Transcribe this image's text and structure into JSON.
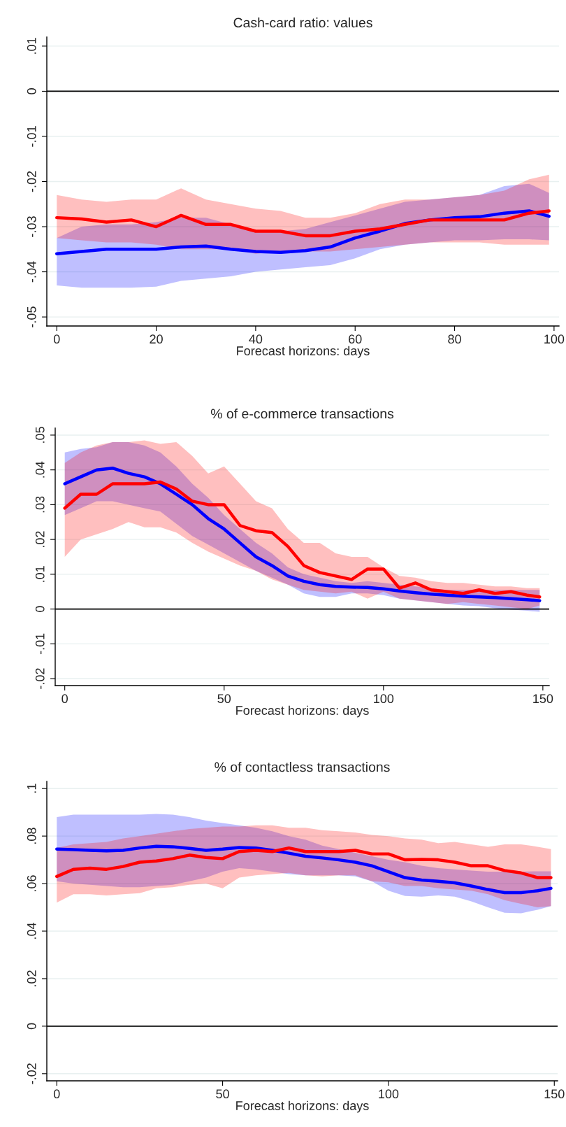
{
  "chart_data": [
    {
      "type": "line",
      "title": "Cash-card ratio: values",
      "xlabel": "Forecast horizons: days",
      "x": [
        0,
        5,
        10,
        15,
        20,
        25,
        30,
        35,
        40,
        45,
        50,
        55,
        60,
        65,
        70,
        75,
        80,
        85,
        90,
        95,
        99
      ],
      "series": [
        {
          "color": "#0000ff",
          "values": [
            -0.036,
            -0.0355,
            -0.035,
            -0.035,
            -0.035,
            -0.0345,
            -0.0343,
            -0.035,
            -0.0355,
            -0.0357,
            -0.0353,
            -0.0345,
            -0.0325,
            -0.031,
            -0.0293,
            -0.0285,
            -0.028,
            -0.0278,
            -0.027,
            -0.0265,
            -0.0277
          ],
          "lower": [
            -0.043,
            -0.0435,
            -0.0435,
            -0.0435,
            -0.0433,
            -0.042,
            -0.0415,
            -0.041,
            -0.04,
            -0.0395,
            -0.039,
            -0.0385,
            -0.037,
            -0.035,
            -0.034,
            -0.0335,
            -0.033,
            -0.033,
            -0.0328,
            -0.0328,
            -0.033
          ],
          "upper": [
            -0.0325,
            -0.03,
            -0.0295,
            -0.0295,
            -0.029,
            -0.028,
            -0.028,
            -0.0295,
            -0.031,
            -0.031,
            -0.0305,
            -0.029,
            -0.0275,
            -0.026,
            -0.0245,
            -0.024,
            -0.0235,
            -0.023,
            -0.021,
            -0.0205,
            -0.0225
          ]
        },
        {
          "color": "#ff0000",
          "values": [
            -0.028,
            -0.0283,
            -0.029,
            -0.0285,
            -0.03,
            -0.0275,
            -0.0295,
            -0.0295,
            -0.031,
            -0.031,
            -0.032,
            -0.032,
            -0.031,
            -0.0305,
            -0.0295,
            -0.0285,
            -0.0285,
            -0.0285,
            -0.0285,
            -0.027,
            -0.0265
          ],
          "lower": [
            -0.0325,
            -0.033,
            -0.0335,
            -0.0335,
            -0.034,
            -0.035,
            -0.035,
            -0.035,
            -0.036,
            -0.0355,
            -0.0355,
            -0.0355,
            -0.035,
            -0.0345,
            -0.034,
            -0.0335,
            -0.0335,
            -0.0335,
            -0.034,
            -0.034,
            -0.034
          ],
          "upper": [
            -0.023,
            -0.024,
            -0.0245,
            -0.024,
            -0.024,
            -0.0215,
            -0.024,
            -0.025,
            -0.026,
            -0.0265,
            -0.028,
            -0.028,
            -0.027,
            -0.025,
            -0.024,
            -0.024,
            -0.0235,
            -0.023,
            -0.022,
            -0.0195,
            -0.0185
          ]
        }
      ],
      "xlim": [
        -2,
        101
      ],
      "xticks": [
        0,
        20,
        40,
        60,
        80,
        100
      ],
      "ylim": [
        -0.052,
        0.012
      ],
      "yticks": [
        {
          "value": 0.01,
          "label": ".01"
        },
        0,
        {
          "value": -0.01,
          "label": "-.01"
        },
        {
          "value": -0.02,
          "label": "-.02"
        },
        {
          "value": -0.03,
          "label": "-.03"
        },
        {
          "value": -0.04,
          "label": "-.04"
        },
        {
          "value": -0.05,
          "label": "-.05"
        }
      ],
      "ref_lines": [
        {
          "axis": "y",
          "value": 0,
          "color": "#000000"
        }
      ],
      "grid": "y"
    },
    {
      "type": "line",
      "title": "% of e-commerce transactions",
      "xlabel": "Forecast horizons: days",
      "x": [
        0,
        5,
        10,
        15,
        20,
        25,
        30,
        35,
        40,
        45,
        50,
        55,
        60,
        65,
        70,
        75,
        80,
        85,
        90,
        95,
        100,
        105,
        110,
        115,
        120,
        125,
        130,
        135,
        140,
        145,
        149
      ],
      "series": [
        {
          "color": "#0000ff",
          "values": [
            0.036,
            0.038,
            0.04,
            0.0405,
            0.039,
            0.038,
            0.036,
            0.033,
            0.03,
            0.026,
            0.023,
            0.019,
            0.015,
            0.0125,
            0.0095,
            0.008,
            0.007,
            0.0065,
            0.0063,
            0.0062,
            0.0058,
            0.0052,
            0.0047,
            0.0043,
            0.004,
            0.0037,
            0.0035,
            0.0033,
            0.003,
            0.0027,
            0.0024
          ],
          "lower": [
            0.027,
            0.029,
            0.031,
            0.031,
            0.03,
            0.029,
            0.028,
            0.0245,
            0.021,
            0.0185,
            0.016,
            0.0135,
            0.011,
            0.009,
            0.007,
            0.0045,
            0.0035,
            0.0035,
            0.0045,
            0.0045,
            0.004,
            0.003,
            0.0025,
            0.002,
            0.0015,
            0.001,
            0.0008,
            0.0002,
            -0.0002,
            -0.0005,
            -0.0008
          ],
          "upper": [
            0.045,
            0.046,
            0.0465,
            0.048,
            0.048,
            0.047,
            0.045,
            0.041,
            0.036,
            0.032,
            0.027,
            0.023,
            0.019,
            0.016,
            0.012,
            0.01,
            0.009,
            0.008,
            0.0075,
            0.008,
            0.0075,
            0.007,
            0.0065,
            0.006,
            0.0055,
            0.0055,
            0.0055,
            0.0055,
            0.0055,
            0.0055,
            0.0055
          ]
        },
        {
          "color": "#ff0000",
          "values": [
            0.029,
            0.033,
            0.033,
            0.036,
            0.036,
            0.036,
            0.0365,
            0.0345,
            0.031,
            0.03,
            0.03,
            0.024,
            0.0225,
            0.022,
            0.018,
            0.0125,
            0.0105,
            0.0095,
            0.0085,
            0.0115,
            0.0115,
            0.006,
            0.0075,
            0.0055,
            0.005,
            0.0045,
            0.0055,
            0.0045,
            0.005,
            0.004,
            0.0035
          ],
          "lower": [
            0.015,
            0.02,
            0.0215,
            0.023,
            0.025,
            0.0235,
            0.0235,
            0.022,
            0.019,
            0.0165,
            0.0145,
            0.0125,
            0.011,
            0.0085,
            0.007,
            0.0055,
            0.005,
            0.0045,
            0.005,
            0.003,
            0.005,
            0.003,
            0.0025,
            0.002,
            0.0015,
            0.002,
            0.0015,
            0.001,
            0.0005,
            0.0,
            0.001
          ],
          "upper": [
            0.042,
            0.045,
            0.047,
            0.048,
            0.048,
            0.0485,
            0.0475,
            0.048,
            0.044,
            0.039,
            0.041,
            0.036,
            0.031,
            0.029,
            0.023,
            0.019,
            0.019,
            0.016,
            0.015,
            0.015,
            0.012,
            0.0095,
            0.009,
            0.008,
            0.0075,
            0.0075,
            0.007,
            0.0065,
            0.0065,
            0.006,
            0.006
          ]
        }
      ],
      "xlim": [
        -3,
        152
      ],
      "xticks": [
        0,
        50,
        100,
        150
      ],
      "ylim": [
        -0.022,
        0.052
      ],
      "yticks": [
        {
          "value": 0.05,
          "label": ".05"
        },
        {
          "value": 0.04,
          "label": ".04"
        },
        {
          "value": 0.03,
          "label": ".03"
        },
        {
          "value": 0.02,
          "label": ".02"
        },
        {
          "value": 0.01,
          "label": ".01"
        },
        0,
        {
          "value": -0.01,
          "label": "-.01"
        },
        {
          "value": -0.02,
          "label": "-.02"
        }
      ],
      "ref_lines": [
        {
          "axis": "y",
          "value": 0,
          "color": "#000000"
        }
      ],
      "grid": "y"
    },
    {
      "type": "line",
      "title": "% of contactless transactions",
      "xlabel": "Forecast horizons: days",
      "x": [
        0,
        5,
        10,
        15,
        20,
        25,
        30,
        35,
        40,
        45,
        50,
        55,
        60,
        65,
        70,
        75,
        80,
        85,
        90,
        95,
        100,
        105,
        110,
        115,
        120,
        125,
        130,
        135,
        140,
        145,
        149
      ],
      "series": [
        {
          "color": "#0000ff",
          "values": [
            0.0745,
            0.0743,
            0.074,
            0.0738,
            0.074,
            0.075,
            0.0757,
            0.0755,
            0.0748,
            0.074,
            0.0745,
            0.0752,
            0.075,
            0.074,
            0.0728,
            0.0715,
            0.0708,
            0.07,
            0.069,
            0.0675,
            0.065,
            0.0625,
            0.0615,
            0.061,
            0.0603,
            0.059,
            0.0575,
            0.0562,
            0.0562,
            0.057,
            0.058
          ],
          "lower": [
            0.061,
            0.06,
            0.0595,
            0.059,
            0.0585,
            0.0585,
            0.059,
            0.0595,
            0.061,
            0.0625,
            0.065,
            0.0665,
            0.066,
            0.065,
            0.064,
            0.0635,
            0.0635,
            0.0635,
            0.063,
            0.061,
            0.057,
            0.0548,
            0.0545,
            0.055,
            0.0545,
            0.0525,
            0.05,
            0.0477,
            0.0475,
            0.049,
            0.0505
          ],
          "upper": [
            0.088,
            0.089,
            0.089,
            0.089,
            0.089,
            0.089,
            0.0893,
            0.089,
            0.088,
            0.0865,
            0.0855,
            0.0845,
            0.0835,
            0.082,
            0.08,
            0.0785,
            0.076,
            0.0745,
            0.073,
            0.0715,
            0.07,
            0.069,
            0.0675,
            0.0665,
            0.066,
            0.0655,
            0.065,
            0.065,
            0.065,
            0.0652,
            0.0652
          ]
        },
        {
          "color": "#ff0000",
          "values": [
            0.063,
            0.066,
            0.0665,
            0.066,
            0.0672,
            0.069,
            0.0695,
            0.0705,
            0.072,
            0.071,
            0.0705,
            0.0735,
            0.074,
            0.0735,
            0.075,
            0.0735,
            0.0735,
            0.0735,
            0.074,
            0.0725,
            0.0725,
            0.07,
            0.0702,
            0.07,
            0.069,
            0.0675,
            0.0675,
            0.0655,
            0.0645,
            0.0625,
            0.0625
          ],
          "lower": [
            0.052,
            0.0555,
            0.0555,
            0.055,
            0.0555,
            0.056,
            0.058,
            0.0585,
            0.0595,
            0.06,
            0.058,
            0.0625,
            0.0635,
            0.064,
            0.0645,
            0.0635,
            0.063,
            0.0635,
            0.0635,
            0.061,
            0.0605,
            0.059,
            0.059,
            0.058,
            0.0575,
            0.057,
            0.0555,
            0.053,
            0.0515,
            0.05,
            0.0505
          ],
          "upper": [
            0.075,
            0.0765,
            0.077,
            0.0775,
            0.079,
            0.08,
            0.081,
            0.082,
            0.083,
            0.0835,
            0.084,
            0.084,
            0.0845,
            0.0845,
            0.0835,
            0.0835,
            0.0825,
            0.082,
            0.0815,
            0.0805,
            0.08,
            0.079,
            0.0785,
            0.077,
            0.0775,
            0.0765,
            0.0755,
            0.0765,
            0.0765,
            0.0755,
            0.0745
          ]
        }
      ],
      "xlim": [
        -3,
        151
      ],
      "xticks": [
        0,
        50,
        100,
        150
      ],
      "ylim": [
        -0.023,
        0.103
      ],
      "yticks": [
        {
          "value": 0.1,
          "label": ".1"
        },
        {
          "value": 0.08,
          "label": ".08"
        },
        {
          "value": 0.06,
          "label": ".06"
        },
        {
          "value": 0.04,
          "label": ".04"
        },
        {
          "value": 0.02,
          "label": ".02"
        },
        0,
        {
          "value": -0.02,
          "label": "-.02"
        }
      ],
      "ref_lines": [
        {
          "axis": "y",
          "value": 0,
          "color": "#000000"
        }
      ],
      "grid": "y"
    }
  ]
}
